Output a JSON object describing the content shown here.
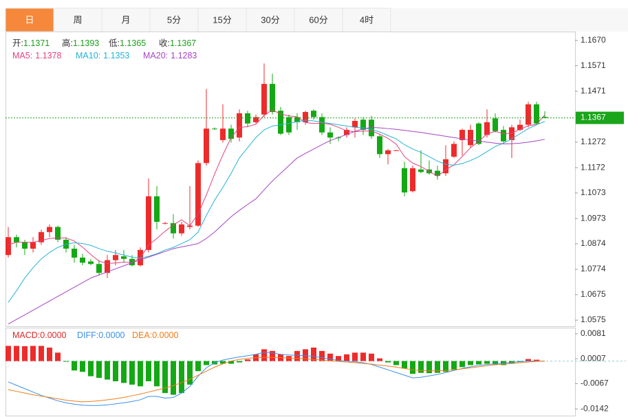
{
  "tabs": [
    "日",
    "周",
    "月",
    "5分",
    "15分",
    "30分",
    "60分",
    "4时"
  ],
  "active_tab": 0,
  "chart_data": [
    {
      "type": "candlestick",
      "up_color": "#ee2b2b",
      "down_color": "#14a814",
      "ohlc_labels": [
        "开:",
        "高:",
        "低:",
        "收:"
      ],
      "open": [
        1.083,
        1.09,
        1.088,
        1.0855,
        1.088,
        1.092,
        1.094,
        1.089,
        1.0855,
        1.082,
        1.0805,
        1.0795,
        1.076,
        1.081,
        1.0825,
        1.0815,
        1.079,
        1.085,
        1.106,
        1.0955,
        1.0955,
        1.0915,
        1.094,
        1.0945,
        1.119,
        1.1325,
        1.128,
        1.1325,
        1.129,
        1.1385,
        1.135,
        1.138,
        1.15,
        1.1395,
        1.137,
        1.137,
        1.135,
        1.1395,
        1.137,
        1.131,
        1.129,
        1.13,
        1.133,
        1.136,
        1.136,
        1.1295,
        1.1225,
        1.124,
        1.117,
        1.108,
        1.1165,
        1.1165,
        1.116,
        1.115,
        1.1215,
        1.128,
        1.126,
        1.1345,
        1.13,
        1.1365,
        1.132,
        1.128,
        1.132,
        1.134,
        1.142,
        1.1371
      ],
      "high": [
        1.094,
        1.091,
        1.089,
        1.09,
        1.093,
        1.095,
        1.0945,
        1.09,
        1.087,
        1.0835,
        1.0815,
        1.081,
        1.083,
        1.085,
        1.085,
        1.083,
        1.086,
        1.113,
        1.11,
        1.096,
        1.099,
        1.096,
        1.11,
        1.12,
        1.148,
        1.133,
        1.142,
        1.134,
        1.14,
        1.1395,
        1.138,
        1.158,
        1.154,
        1.141,
        1.138,
        1.1385,
        1.1395,
        1.14,
        1.1385,
        1.133,
        1.1295,
        1.133,
        1.1365,
        1.137,
        1.1375,
        1.13,
        1.1245,
        1.1242,
        1.1195,
        1.118,
        1.124,
        1.12,
        1.118,
        1.126,
        1.1275,
        1.1325,
        1.134,
        1.135,
        1.14,
        1.1385,
        1.1335,
        1.134,
        1.136,
        1.143,
        1.143,
        1.1393
      ],
      "low": [
        1.082,
        1.086,
        1.083,
        1.084,
        1.087,
        1.09,
        1.088,
        1.084,
        1.08,
        1.079,
        1.079,
        1.075,
        1.074,
        1.079,
        1.08,
        1.0785,
        1.0785,
        1.084,
        1.093,
        1.095,
        1.0895,
        1.0905,
        1.093,
        1.094,
        1.118,
        1.132,
        1.127,
        1.127,
        1.1275,
        1.133,
        1.1345,
        1.137,
        1.138,
        1.13,
        1.13,
        1.132,
        1.134,
        1.136,
        1.13,
        1.1265,
        1.1275,
        1.129,
        1.129,
        1.13,
        1.1285,
        1.121,
        1.1185,
        1.1238,
        1.106,
        1.1075,
        1.115,
        1.1145,
        1.1125,
        1.114,
        1.121,
        1.122,
        1.125,
        1.126,
        1.129,
        1.131,
        1.127,
        1.121,
        1.1315,
        1.133,
        1.134,
        1.1365
      ],
      "close": [
        1.09,
        1.088,
        1.0855,
        1.088,
        1.092,
        1.094,
        1.089,
        1.0855,
        1.082,
        1.08,
        1.0795,
        1.076,
        1.081,
        1.083,
        1.0815,
        1.079,
        1.085,
        1.106,
        1.096,
        1.0955,
        1.0915,
        1.095,
        1.0945,
        1.119,
        1.1325,
        1.1323,
        1.1325,
        1.1285,
        1.1385,
        1.1345,
        1.137,
        1.15,
        1.139,
        1.1305,
        1.131,
        1.135,
        1.139,
        1.137,
        1.131,
        1.129,
        1.1288,
        1.132,
        1.1355,
        1.132,
        1.1295,
        1.1225,
        1.124,
        1.124,
        1.1075,
        1.117,
        1.1155,
        1.115,
        1.114,
        1.1205,
        1.1265,
        1.132,
        1.132,
        1.1265,
        1.135,
        1.1315,
        1.1275,
        1.133,
        1.134,
        1.142,
        1.1345,
        1.1367
      ],
      "series": [
        {
          "name": "MA5:",
          "color": "#e4417e",
          "values": [
            1.087,
            1.088,
            1.088,
            1.088,
            1.0887,
            1.0895,
            1.0897,
            1.0897,
            1.0885,
            1.0861,
            1.0832,
            1.0806,
            1.0797,
            1.0799,
            1.0802,
            1.0801,
            1.0819,
            1.0869,
            1.0895,
            1.0923,
            1.0948,
            1.0968,
            1.0945,
            1.0991,
            1.1065,
            1.1147,
            1.1222,
            1.129,
            1.1329,
            1.1333,
            1.1342,
            1.1377,
            1.1398,
            1.1382,
            1.1375,
            1.1371,
            1.1349,
            1.1345,
            1.1346,
            1.1342,
            1.133,
            1.1316,
            1.1313,
            1.1315,
            1.1316,
            1.1303,
            1.1287,
            1.1264,
            1.1215,
            1.119,
            1.1176,
            1.1158,
            1.1138,
            1.1164,
            1.1183,
            1.1216,
            1.125,
            1.1275,
            1.1304,
            1.1314,
            1.1305,
            1.1307,
            1.1322,
            1.1336,
            1.1342,
            1.1378
          ]
        },
        {
          "name": "MA10:",
          "color": "#25b3d6",
          "values": [
            1.0645,
            1.069,
            1.074,
            1.078,
            1.0815,
            1.084,
            1.086,
            1.0872,
            1.0878,
            1.0875,
            1.0868,
            1.0855,
            1.0845,
            1.0838,
            1.083,
            1.0822,
            1.0818,
            1.0825,
            1.0835,
            1.085,
            1.086,
            1.0875,
            1.089,
            1.092,
            1.0985,
            1.1045,
            1.1095,
            1.115,
            1.121,
            1.125,
            1.129,
            1.132,
            1.1335,
            1.134,
            1.1345,
            1.1352,
            1.1358,
            1.1355,
            1.135,
            1.1345,
            1.134,
            1.1335,
            1.133,
            1.1328,
            1.1322,
            1.1312,
            1.1298,
            1.1285,
            1.1262,
            1.1245,
            1.1232,
            1.1215,
            1.1198,
            1.1185,
            1.1182,
            1.1188,
            1.12,
            1.1215,
            1.1235,
            1.1255,
            1.1268,
            1.1285,
            1.1305,
            1.1325,
            1.134,
            1.1353
          ]
        },
        {
          "name": "MA20:",
          "color": "#a444c2",
          "values": [
            1.056,
            1.0578,
            1.0596,
            1.0614,
            1.0632,
            1.065,
            1.0668,
            1.0686,
            1.0704,
            1.0722,
            1.074,
            1.0752,
            1.0764,
            1.0776,
            1.0788,
            1.08,
            1.0811,
            1.0822,
            1.0833,
            1.0844,
            1.0855,
            1.0862,
            1.0868,
            1.0875,
            1.0895,
            1.092,
            1.095,
            1.098,
            1.1005,
            1.1028,
            1.105,
            1.1085,
            1.112,
            1.115,
            1.118,
            1.121,
            1.1228,
            1.1245,
            1.1262,
            1.1278,
            1.129,
            1.1302,
            1.1314,
            1.1324,
            1.133,
            1.1328,
            1.1325,
            1.1322,
            1.1318,
            1.1314,
            1.131,
            1.1305,
            1.13,
            1.1295,
            1.129,
            1.1285,
            1.128,
            1.1276,
            1.1272,
            1.1268,
            1.1265,
            1.1266,
            1.1268,
            1.1272,
            1.1277,
            1.1283
          ]
        }
      ],
      "ylim": [
        1.0551,
        1.1702
      ],
      "yticks": [
        {
          "value": 1.167,
          "label": "1.1670"
        },
        {
          "value": 1.1571,
          "label": "1.1571"
        },
        {
          "value": 1.1471,
          "label": "1.1471"
        },
        {
          "value": 1.1272,
          "label": "1.1272"
        },
        {
          "value": 1.1172,
          "label": "1.1172"
        },
        {
          "value": 1.1073,
          "label": "1.1073"
        },
        {
          "value": 1.0973,
          "label": "1.0973"
        },
        {
          "value": 1.0874,
          "label": "1.0874"
        },
        {
          "value": 1.0774,
          "label": "1.0774"
        },
        {
          "value": 1.0675,
          "label": "1.0675"
        },
        {
          "value": 1.0575,
          "label": "1.0575"
        }
      ]
    },
    {
      "type": "macd",
      "up_color": "#ee2b2b",
      "down_color": "#14a814",
      "legend": [
        {
          "name": "MACD:",
          "value_label": "0.0000",
          "color": "#e02828"
        },
        {
          "name": "DIFF:",
          "value_label": "0.0000",
          "color": "#3b8fe8"
        },
        {
          "name": "DEA:",
          "value_label": "0.0000",
          "color": "#f07b16"
        }
      ],
      "values": [
        0.0045,
        0.0045,
        0.0044,
        0.0045,
        0.0045,
        0.004,
        0.0025,
        -0.0002,
        -0.0028,
        -0.0032,
        -0.0045,
        -0.005,
        -0.0055,
        -0.006,
        -0.0065,
        -0.007,
        -0.0075,
        -0.006,
        -0.0075,
        -0.0095,
        -0.01,
        -0.0095,
        -0.007,
        -0.003,
        -0.0012,
        -0.001,
        -0.0008,
        -0.0008,
        -0.0004,
        0.0005,
        0.002,
        0.0035,
        0.003,
        0.002,
        0.0015,
        0.003,
        0.0035,
        0.004,
        0.003,
        0.0022,
        0.0015,
        0.002,
        0.0025,
        0.0025,
        0.0022,
        0.0008,
        -0.0004,
        -0.0012,
        -0.0022,
        -0.0038,
        -0.0035,
        -0.0036,
        -0.0035,
        -0.0032,
        -0.0025,
        -0.0018,
        -0.0012,
        -0.001,
        -0.0008,
        -0.001,
        -0.0012,
        -0.0008,
        -0.0003,
        0.0006,
        0.0004,
        0
      ],
      "series": [
        {
          "color": "#3b8fe8",
          "values": [
            -0.0062,
            -0.0072,
            -0.0082,
            -0.0092,
            -0.0102,
            -0.011,
            -0.0118,
            -0.0124,
            -0.0128,
            -0.0131,
            -0.0132,
            -0.0132,
            -0.013,
            -0.0127,
            -0.0124,
            -0.012,
            -0.0115,
            -0.0105,
            -0.0105,
            -0.011,
            -0.0108,
            -0.0095,
            -0.0075,
            -0.0045,
            -0.002,
            -0.0005,
            0.0003,
            0.0008,
            0.0012,
            0.0016,
            0.002,
            0.0026,
            0.0024,
            0.002,
            0.0018,
            0.0017,
            0.0016,
            0.0014,
            0.001,
            0.0006,
            0.0002,
            0,
            -0.0002,
            -0.0005,
            -0.001,
            -0.0018,
            -0.0026,
            -0.0034,
            -0.0042,
            -0.005,
            -0.0048,
            -0.0044,
            -0.004,
            -0.0034,
            -0.0028,
            -0.0022,
            -0.0017,
            -0.0013,
            -0.001,
            -0.0008,
            -0.0006,
            -0.0004,
            -0.0002,
            0,
            0,
            0
          ]
        },
        {
          "color": "#f07b16",
          "values": [
            -0.0085,
            -0.009,
            -0.0095,
            -0.01,
            -0.0104,
            -0.0108,
            -0.0112,
            -0.0116,
            -0.0119,
            -0.0121,
            -0.012,
            -0.0118,
            -0.0115,
            -0.0112,
            -0.0108,
            -0.0103,
            -0.0098,
            -0.0092,
            -0.0086,
            -0.008,
            -0.0073,
            -0.0064,
            -0.0054,
            -0.0042,
            -0.003,
            -0.0018,
            -0.0008,
            0,
            0.0005,
            0.0008,
            0.001,
            0.0011,
            0.0011,
            0.001,
            0.0009,
            0.0008,
            0.0007,
            0.0005,
            0.0003,
            0.0001,
            -0.0001,
            -0.0003,
            -0.0005,
            -0.0007,
            -0.0009,
            -0.0012,
            -0.0015,
            -0.0018,
            -0.0022,
            -0.0026,
            -0.0028,
            -0.0029,
            -0.0029,
            -0.0028,
            -0.0026,
            -0.0023,
            -0.002,
            -0.0017,
            -0.0014,
            -0.0011,
            -0.0009,
            -0.0007,
            -0.0005,
            -0.0003,
            -0.0001,
            0
          ]
        }
      ],
      "ylim": [
        -0.0162,
        0.0097
      ],
      "yticks": [
        0.0081,
        0.0007,
        -0.0067,
        -0.0142
      ]
    }
  ]
}
